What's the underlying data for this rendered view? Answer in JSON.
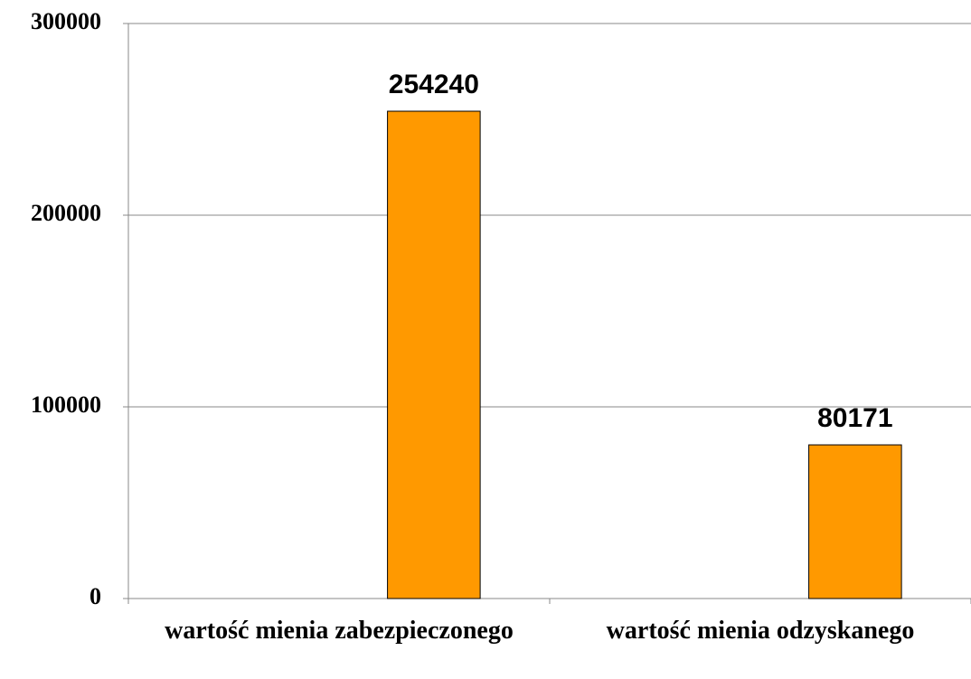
{
  "chart_data": {
    "type": "bar",
    "categories": [
      "wartość mienia zabezpieczonego",
      "wartość mienia odzyskanego"
    ],
    "values": [
      254240,
      80171
    ],
    "color": "#ff9900",
    "ylim": [
      0,
      300000
    ],
    "yticks": [
      0,
      100000,
      200000,
      300000
    ],
    "grid": true
  }
}
